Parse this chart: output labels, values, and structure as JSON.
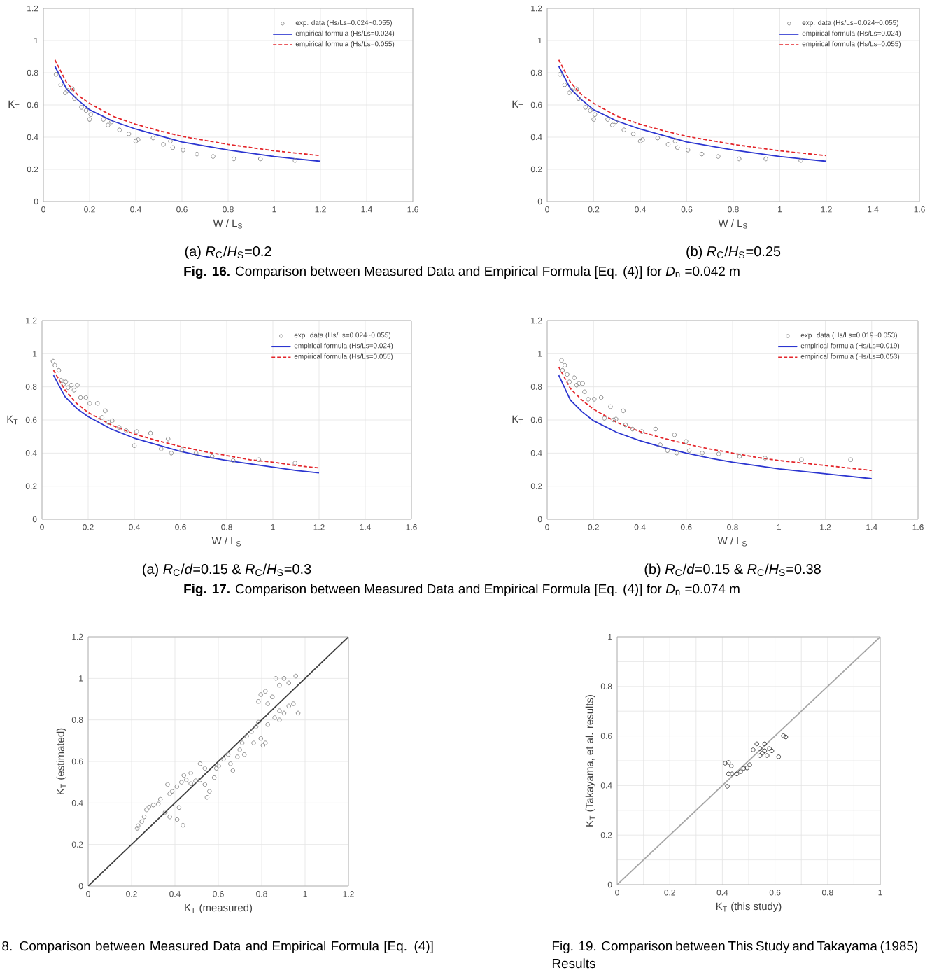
{
  "chart_data": [
    {
      "type": "scatter",
      "xlabel": "W / L$_{S}$",
      "ylabel": "K$_{T}$",
      "xlim": [
        0,
        1.6
      ],
      "ylim": [
        0,
        1.2
      ],
      "xticks": [
        0,
        0.2,
        0.4,
        0.6,
        0.8,
        1,
        1.2,
        1.4,
        1.6
      ],
      "yticks": [
        0,
        0.2,
        0.4,
        0.6,
        0.8,
        1,
        1.2
      ],
      "grid": true,
      "legend": "top right",
      "annotations": [
        "(a) *R*$_{C}$/*H*$_{S}$=0.2",
        "**Fig. 16.** Comparison between Measured Data and Empirical Formula [Eq. (4)] for *D*$_{n}$ =0.042 m"
      ],
      "series": [
        {
          "name": "exp. data (Hs/Ls=0.024~0.055)",
          "marker": "circle",
          "color": "#8c8c8c",
          "x": [
            0.055,
            0.075,
            0.095,
            0.105,
            0.125,
            0.135,
            0.165,
            0.185,
            0.2,
            0.205,
            0.26,
            0.28,
            0.295,
            0.33,
            0.37,
            0.4,
            0.41,
            0.475,
            0.52,
            0.55,
            0.56,
            0.605,
            0.665,
            0.735,
            0.825,
            0.94,
            1.09
          ],
          "values": [
            0.79,
            0.725,
            0.675,
            0.69,
            0.7,
            0.64,
            0.585,
            0.565,
            0.51,
            0.54,
            0.51,
            0.475,
            0.495,
            0.445,
            0.42,
            0.375,
            0.385,
            0.395,
            0.355,
            0.375,
            0.335,
            0.32,
            0.295,
            0.28,
            0.265,
            0.265,
            0.255
          ]
        },
        {
          "name": "empirical formula (Hs/Ls=0.024)",
          "type": "line",
          "line_style": "solid",
          "color": "#2b35d0",
          "x": [
            0.05,
            0.1,
            0.15,
            0.2,
            0.3,
            0.4,
            0.5,
            0.6,
            0.7,
            0.8,
            0.9,
            1.0,
            1.1,
            1.2
          ],
          "values": [
            0.84,
            0.7,
            0.63,
            0.57,
            0.5,
            0.45,
            0.41,
            0.37,
            0.345,
            0.32,
            0.3,
            0.28,
            0.265,
            0.25
          ]
        },
        {
          "name": "empirical formula (Hs/Ls=0.055)",
          "type": "line",
          "line_style": "dashed",
          "color": "#e3262b",
          "x": [
            0.05,
            0.1,
            0.15,
            0.2,
            0.3,
            0.4,
            0.5,
            0.6,
            0.7,
            0.8,
            0.9,
            1.0,
            1.1,
            1.2
          ],
          "values": [
            0.88,
            0.74,
            0.66,
            0.61,
            0.53,
            0.48,
            0.44,
            0.405,
            0.38,
            0.355,
            0.335,
            0.315,
            0.3,
            0.285
          ]
        }
      ]
    },
    {
      "type": "scatter",
      "xlabel": "W / L$_{S}$",
      "ylabel": "K$_{T}$",
      "xlim": [
        0,
        1.6
      ],
      "ylim": [
        0,
        1.2
      ],
      "xticks": [
        0,
        0.2,
        0.4,
        0.6,
        0.8,
        1,
        1.2,
        1.4,
        1.6
      ],
      "yticks": [
        0,
        0.2,
        0.4,
        0.6,
        0.8,
        1,
        1.2
      ],
      "grid": true,
      "legend": "top right",
      "annotations": [
        "(b) *R*$_{C}$/*H*$_{S}$=0.25"
      ],
      "series": [
        {
          "name": "exp. data (Hs/Ls=0.024~0.055)",
          "marker": "circle",
          "color": "#8c8c8c",
          "x": [
            0.055,
            0.075,
            0.095,
            0.105,
            0.125,
            0.135,
            0.165,
            0.185,
            0.2,
            0.205,
            0.26,
            0.28,
            0.295,
            0.33,
            0.37,
            0.4,
            0.41,
            0.475,
            0.52,
            0.55,
            0.56,
            0.605,
            0.665,
            0.735,
            0.825,
            0.94,
            1.09
          ],
          "values": [
            0.79,
            0.725,
            0.675,
            0.69,
            0.7,
            0.64,
            0.585,
            0.565,
            0.51,
            0.54,
            0.51,
            0.475,
            0.495,
            0.445,
            0.42,
            0.375,
            0.385,
            0.395,
            0.355,
            0.375,
            0.335,
            0.32,
            0.295,
            0.28,
            0.265,
            0.265,
            0.255
          ]
        },
        {
          "name": "empirical formula (Hs/Ls=0.024)",
          "type": "line",
          "line_style": "solid",
          "color": "#2b35d0",
          "x": [
            0.05,
            0.1,
            0.15,
            0.2,
            0.3,
            0.4,
            0.5,
            0.6,
            0.7,
            0.8,
            0.9,
            1.0,
            1.1,
            1.2
          ],
          "values": [
            0.84,
            0.7,
            0.63,
            0.57,
            0.5,
            0.45,
            0.41,
            0.37,
            0.345,
            0.32,
            0.3,
            0.28,
            0.265,
            0.25
          ]
        },
        {
          "name": "empirical formula (Hs/Ls=0.055)",
          "type": "line",
          "line_style": "dashed",
          "color": "#e3262b",
          "x": [
            0.05,
            0.1,
            0.15,
            0.2,
            0.3,
            0.4,
            0.5,
            0.6,
            0.7,
            0.8,
            0.9,
            1.0,
            1.1,
            1.2
          ],
          "values": [
            0.88,
            0.74,
            0.66,
            0.61,
            0.53,
            0.48,
            0.44,
            0.405,
            0.38,
            0.355,
            0.335,
            0.315,
            0.3,
            0.285
          ]
        }
      ]
    },
    {
      "type": "scatter",
      "xlabel": "W / L$_{S}$",
      "ylabel": "K$_{T}$",
      "xlim": [
        0,
        1.6
      ],
      "ylim": [
        0,
        1.2
      ],
      "xticks": [
        0,
        0.2,
        0.4,
        0.6,
        0.8,
        1,
        1.2,
        1.4,
        1.6
      ],
      "yticks": [
        0,
        0.2,
        0.4,
        0.6,
        0.8,
        1,
        1.2
      ],
      "grid": true,
      "legend": "top right",
      "annotations": [
        "(a) *R*$_{C}$/*d*=0.15 & *R*$_{C}$/*H*$_{S}$=0.3",
        "**Fig. 17.** Comparison between Measured Data and Empirical Formula [Eq. (4)] for *D*$_{n}$ =0.074 m"
      ],
      "series": [
        {
          "name": "exp. data (Hs/Ls=0.024~0.055)",
          "marker": "circle",
          "color": "#8c8c8c",
          "x": [
            0.048,
            0.056,
            0.073,
            0.083,
            0.093,
            0.103,
            0.113,
            0.127,
            0.139,
            0.153,
            0.167,
            0.19,
            0.207,
            0.24,
            0.26,
            0.274,
            0.288,
            0.304,
            0.334,
            0.365,
            0.41,
            0.4,
            0.47,
            0.516,
            0.546,
            0.56,
            0.606,
            0.667,
            0.737,
            0.828,
            0.939,
            1.096
          ],
          "values": [
            0.955,
            0.93,
            0.9,
            0.84,
            0.815,
            0.83,
            0.795,
            0.81,
            0.78,
            0.81,
            0.735,
            0.735,
            0.7,
            0.7,
            0.615,
            0.655,
            0.585,
            0.595,
            0.555,
            0.535,
            0.53,
            0.445,
            0.52,
            0.425,
            0.485,
            0.4,
            0.42,
            0.4,
            0.38,
            0.355,
            0.36,
            0.34
          ]
        },
        {
          "name": "empirical formula (Hs/Ls=0.024)",
          "type": "line",
          "line_style": "solid",
          "color": "#2b35d0",
          "x": [
            0.05,
            0.1,
            0.15,
            0.2,
            0.3,
            0.4,
            0.5,
            0.6,
            0.7,
            0.8,
            0.9,
            1.0,
            1.1,
            1.2
          ],
          "values": [
            0.87,
            0.74,
            0.67,
            0.62,
            0.545,
            0.49,
            0.45,
            0.41,
            0.38,
            0.355,
            0.335,
            0.315,
            0.295,
            0.28
          ]
        },
        {
          "name": "empirical formula (Hs/Ls=0.055)",
          "type": "line",
          "line_style": "dashed",
          "color": "#e3262b",
          "x": [
            0.05,
            0.1,
            0.15,
            0.2,
            0.3,
            0.4,
            0.5,
            0.6,
            0.7,
            0.8,
            0.9,
            1.0,
            1.1,
            1.2
          ],
          "values": [
            0.9,
            0.78,
            0.7,
            0.645,
            0.57,
            0.515,
            0.475,
            0.44,
            0.41,
            0.385,
            0.36,
            0.345,
            0.325,
            0.31
          ]
        }
      ]
    },
    {
      "type": "scatter",
      "xlabel": "W / L$_{S}$",
      "ylabel": "K$_{T}$",
      "xlim": [
        0,
        1.6
      ],
      "ylim": [
        0,
        1.2
      ],
      "xticks": [
        0,
        0.2,
        0.4,
        0.6,
        0.8,
        1,
        1.2,
        1.4,
        1.6
      ],
      "yticks": [
        0,
        0.2,
        0.4,
        0.6,
        0.8,
        1,
        1.2
      ],
      "grid": true,
      "legend": "top right",
      "annotations": [
        "(b) *R*$_{C}$/*d*=0.15 & *R*$_{C}$/*H*$_{S}$=0.38"
      ],
      "series": [
        {
          "name": "exp. data (Hs/Ls=0.019~0.053)",
          "marker": "circle",
          "color": "#8c8c8c",
          "x": [
            0.062,
            0.076,
            0.066,
            0.086,
            0.096,
            0.117,
            0.127,
            0.137,
            0.153,
            0.161,
            0.177,
            0.203,
            0.233,
            0.247,
            0.273,
            0.287,
            0.297,
            0.328,
            0.338,
            0.368,
            0.408,
            0.468,
            0.488,
            0.519,
            0.549,
            0.559,
            0.599,
            0.613,
            0.669,
            0.74,
            0.83,
            0.94,
            1.097,
            1.309
          ],
          "values": [
            0.96,
            0.93,
            0.9,
            0.875,
            0.83,
            0.855,
            0.81,
            0.82,
            0.82,
            0.77,
            0.725,
            0.725,
            0.735,
            0.61,
            0.68,
            0.6,
            0.605,
            0.655,
            0.57,
            0.545,
            0.53,
            0.545,
            0.45,
            0.415,
            0.51,
            0.4,
            0.47,
            0.415,
            0.4,
            0.395,
            0.38,
            0.37,
            0.36,
            0.36
          ]
        },
        {
          "name": "empirical formula (Hs/Ls=0.019)",
          "type": "line",
          "line_style": "solid",
          "color": "#2b35d0",
          "x": [
            0.05,
            0.1,
            0.15,
            0.2,
            0.3,
            0.4,
            0.5,
            0.6,
            0.7,
            0.8,
            0.9,
            1.0,
            1.1,
            1.2,
            1.3,
            1.4
          ],
          "values": [
            0.87,
            0.72,
            0.65,
            0.595,
            0.525,
            0.475,
            0.435,
            0.4,
            0.37,
            0.345,
            0.325,
            0.305,
            0.29,
            0.275,
            0.26,
            0.245
          ]
        },
        {
          "name": "empirical formula (Hs/Ls=0.053)",
          "type": "line",
          "line_style": "dashed",
          "color": "#e3262b",
          "x": [
            0.05,
            0.1,
            0.15,
            0.2,
            0.3,
            0.4,
            0.5,
            0.6,
            0.7,
            0.8,
            0.9,
            1.0,
            1.1,
            1.2,
            1.3,
            1.4
          ],
          "values": [
            0.92,
            0.79,
            0.72,
            0.665,
            0.585,
            0.53,
            0.49,
            0.455,
            0.425,
            0.4,
            0.375,
            0.355,
            0.34,
            0.325,
            0.31,
            0.295
          ]
        }
      ]
    },
    {
      "type": "scatter",
      "xlabel": "K$_{T}$ (measured)",
      "ylabel": "K$_{T}$ (estimated)",
      "xlim": [
        0,
        1.2
      ],
      "ylim": [
        0,
        1.2
      ],
      "xticks": [
        0,
        0.2,
        0.4,
        0.6,
        0.8,
        1,
        1.2
      ],
      "yticks": [
        0,
        0.2,
        0.4,
        0.6,
        0.8,
        1,
        1.2
      ],
      "grid": true,
      "annotations": [
        "8. Comparison between Measured Data and Empirical Formula [Eq. (4)]"
      ],
      "series": [
        {
          "marker": "circle",
          "color": "#8c8c8c",
          "x": [
            0.226,
            0.23,
            0.247,
            0.258,
            0.269,
            0.28,
            0.3,
            0.323,
            0.333,
            0.355,
            0.376,
            0.41,
            0.437,
            0.419,
            0.387,
            0.409,
            0.43,
            0.452,
            0.473,
            0.495,
            0.516,
            0.538,
            0.548,
            0.559,
            0.581,
            0.591,
            0.602,
            0.624,
            0.645,
            0.656,
            0.667,
            0.688,
            0.699,
            0.71,
            0.72,
            0.731,
            0.753,
            0.763,
            0.774,
            0.785,
            0.796,
            0.806,
            0.817,
            0.785,
            0.796,
            0.817,
            0.828,
            0.849,
            0.865,
            0.882,
            0.903,
            0.925,
            0.957,
            0.882,
            0.903,
            0.925,
            0.946,
            0.968,
            0.86,
            0.882,
            0.828,
            0.516,
            0.538,
            0.441,
            0.473,
            0.366,
            0.376
          ],
          "values": [
            0.278,
            0.29,
            0.31,
            0.333,
            0.367,
            0.38,
            0.39,
            0.395,
            0.418,
            0.356,
            0.333,
            0.32,
            0.293,
            0.378,
            0.456,
            0.478,
            0.5,
            0.511,
            0.493,
            0.507,
            0.511,
            0.489,
            0.427,
            0.456,
            0.522,
            0.567,
            0.578,
            0.611,
            0.633,
            0.589,
            0.556,
            0.622,
            0.656,
            0.689,
            0.633,
            0.722,
            0.744,
            0.689,
            0.767,
            0.789,
            0.711,
            0.678,
            0.689,
            0.889,
            0.922,
            0.938,
            0.878,
            0.911,
            1.0,
            0.967,
            1.0,
            0.978,
            1.011,
            0.844,
            0.833,
            0.867,
            0.878,
            0.833,
            0.811,
            0.8,
            0.778,
            0.589,
            0.567,
            0.533,
            0.544,
            0.489,
            0.444
          ]
        },
        {
          "type": "line",
          "line_style": "solid",
          "color": "#404040",
          "x": [
            0,
            1.2
          ],
          "values": [
            0,
            1.2
          ]
        }
      ]
    },
    {
      "type": "scatter",
      "xlabel": "K$_{T}$ (this study)",
      "ylabel": "K$_{T}$ (Takayama, et al. results)",
      "xlim": [
        0,
        1
      ],
      "ylim": [
        0,
        1
      ],
      "xticks": [
        0,
        {
          "value": 0.1,
          "label": null
        },
        0.2,
        {
          "value": 0.3,
          "label": null
        },
        0.4,
        {
          "value": 0.5,
          "label": null
        },
        0.6,
        {
          "value": 0.7,
          "label": null
        },
        0.8,
        {
          "value": 0.9,
          "label": null
        },
        1
      ],
      "yticks": [
        0,
        {
          "value": 0.1,
          "label": null
        },
        0.2,
        {
          "value": 0.3,
          "label": null
        },
        0.4,
        {
          "value": 0.5,
          "label": null
        },
        0.6,
        {
          "value": 0.7,
          "label": null
        },
        0.8,
        {
          "value": 0.9,
          "label": null
        },
        1
      ],
      "grid": true,
      "annotations": [
        "Fig. 19. Comparison between This Study and Takayama (1985) Results"
      ],
      "series": [
        {
          "marker": "circle",
          "color": "#404040",
          "x": [
            0.411,
            0.423,
            0.434,
            0.419,
            0.423,
            0.437,
            0.455,
            0.469,
            0.481,
            0.494,
            0.504,
            0.517,
            0.531,
            0.543,
            0.552,
            0.561,
            0.57,
            0.579,
            0.543,
            0.588,
            0.614,
            0.632,
            0.641,
            0.561
          ],
          "values": [
            0.49,
            0.493,
            0.479,
            0.397,
            0.447,
            0.447,
            0.447,
            0.456,
            0.469,
            0.471,
            0.484,
            0.544,
            0.568,
            0.549,
            0.531,
            0.54,
            0.521,
            0.549,
            0.521,
            0.54,
            0.516,
            0.601,
            0.596,
            0.568
          ]
        },
        {
          "type": "line",
          "line_style": "solid",
          "color": "#a6a6a6",
          "x": [
            0,
            1
          ],
          "values": [
            0,
            1
          ]
        }
      ]
    }
  ]
}
